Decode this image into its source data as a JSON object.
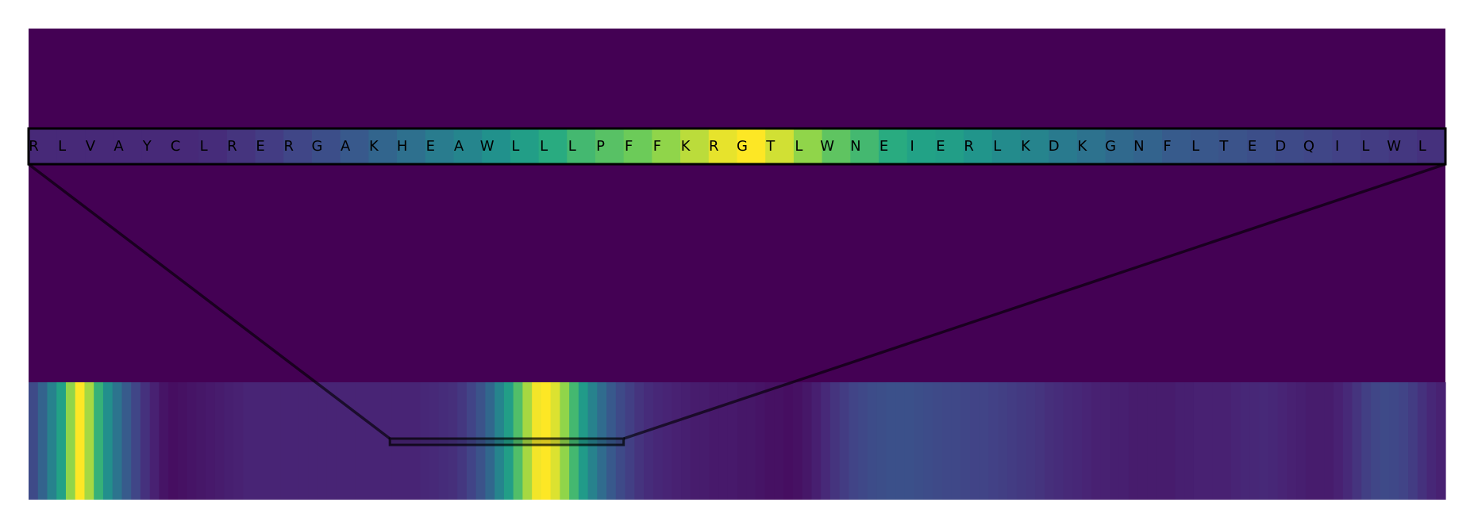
{
  "chart_data": {
    "type": "heatmap",
    "title": "",
    "xlabel": "",
    "ylabel": "",
    "colormap": "viridis",
    "background_color": "#440154",
    "zoom_panel": {
      "sequence": [
        "R",
        "L",
        "V",
        "A",
        "Y",
        "C",
        "L",
        "R",
        "E",
        "R",
        "G",
        "A",
        "K",
        "H",
        "E",
        "A",
        "W",
        "L",
        "L",
        "L",
        "P",
        "F",
        "F",
        "K",
        "R",
        "G",
        "T",
        "L",
        "W",
        "N",
        "E",
        "I",
        "E",
        "R",
        "L",
        "K",
        "D",
        "K",
        "G",
        "N",
        "F",
        "L",
        "T",
        "E",
        "D",
        "Q",
        "I",
        "L",
        "W",
        "L"
      ],
      "values": [
        0.15,
        0.15,
        0.15,
        0.15,
        0.15,
        0.15,
        0.16,
        0.19,
        0.22,
        0.26,
        0.3,
        0.35,
        0.41,
        0.46,
        0.52,
        0.57,
        0.63,
        0.7,
        0.76,
        0.8,
        0.83,
        0.86,
        0.9,
        0.94,
        0.98,
        1.0,
        0.96,
        0.9,
        0.84,
        0.8,
        0.76,
        0.72,
        0.7,
        0.65,
        0.6,
        0.56,
        0.51,
        0.47,
        0.43,
        0.4,
        0.36,
        0.34,
        0.32,
        0.3,
        0.28,
        0.26,
        0.24,
        0.22,
        0.2,
        0.18
      ],
      "label_color": "#000000",
      "border_color": "#000000"
    },
    "overview_track": {
      "values": [
        0.28,
        0.4,
        0.55,
        0.72,
        0.9,
        1.0,
        0.92,
        0.78,
        0.62,
        0.48,
        0.36,
        0.26,
        0.18,
        0.12,
        0.07,
        0.05,
        0.06,
        0.07,
        0.08,
        0.09,
        0.1,
        0.11,
        0.12,
        0.13,
        0.13,
        0.13,
        0.13,
        0.13,
        0.13,
        0.13,
        0.13,
        0.13,
        0.13,
        0.13,
        0.13,
        0.13,
        0.13,
        0.13,
        0.13,
        0.13,
        0.13,
        0.13,
        0.14,
        0.15,
        0.16,
        0.17,
        0.2,
        0.25,
        0.32,
        0.42,
        0.56,
        0.7,
        0.82,
        0.92,
        0.99,
        1.0,
        0.97,
        0.9,
        0.8,
        0.68,
        0.55,
        0.44,
        0.35,
        0.28,
        0.23,
        0.19,
        0.16,
        0.14,
        0.13,
        0.12,
        0.11,
        0.1,
        0.1,
        0.09,
        0.09,
        0.09,
        0.08,
        0.08,
        0.07,
        0.06,
        0.06,
        0.05,
        0.06,
        0.08,
        0.11,
        0.15,
        0.19,
        0.22,
        0.25,
        0.27,
        0.29,
        0.3,
        0.31,
        0.31,
        0.31,
        0.3,
        0.29,
        0.28,
        0.27,
        0.27,
        0.26,
        0.25,
        0.25,
        0.24,
        0.23,
        0.22,
        0.21,
        0.2,
        0.19,
        0.17,
        0.16,
        0.15,
        0.14,
        0.13,
        0.12,
        0.12,
        0.11,
        0.11,
        0.1,
        0.1,
        0.1,
        0.1,
        0.1,
        0.11,
        0.11,
        0.12,
        0.12,
        0.12,
        0.12,
        0.13,
        0.14,
        0.14,
        0.15,
        0.14,
        0.13,
        0.12,
        0.11,
        0.1,
        0.1,
        0.1,
        0.12,
        0.15,
        0.19,
        0.23,
        0.26,
        0.28,
        0.27,
        0.25,
        0.22,
        0.18,
        0.14,
        0.12
      ],
      "zoom_window": {
        "start_fraction": 0.255,
        "end_fraction": 0.42
      },
      "connector_color": "#000000"
    }
  }
}
